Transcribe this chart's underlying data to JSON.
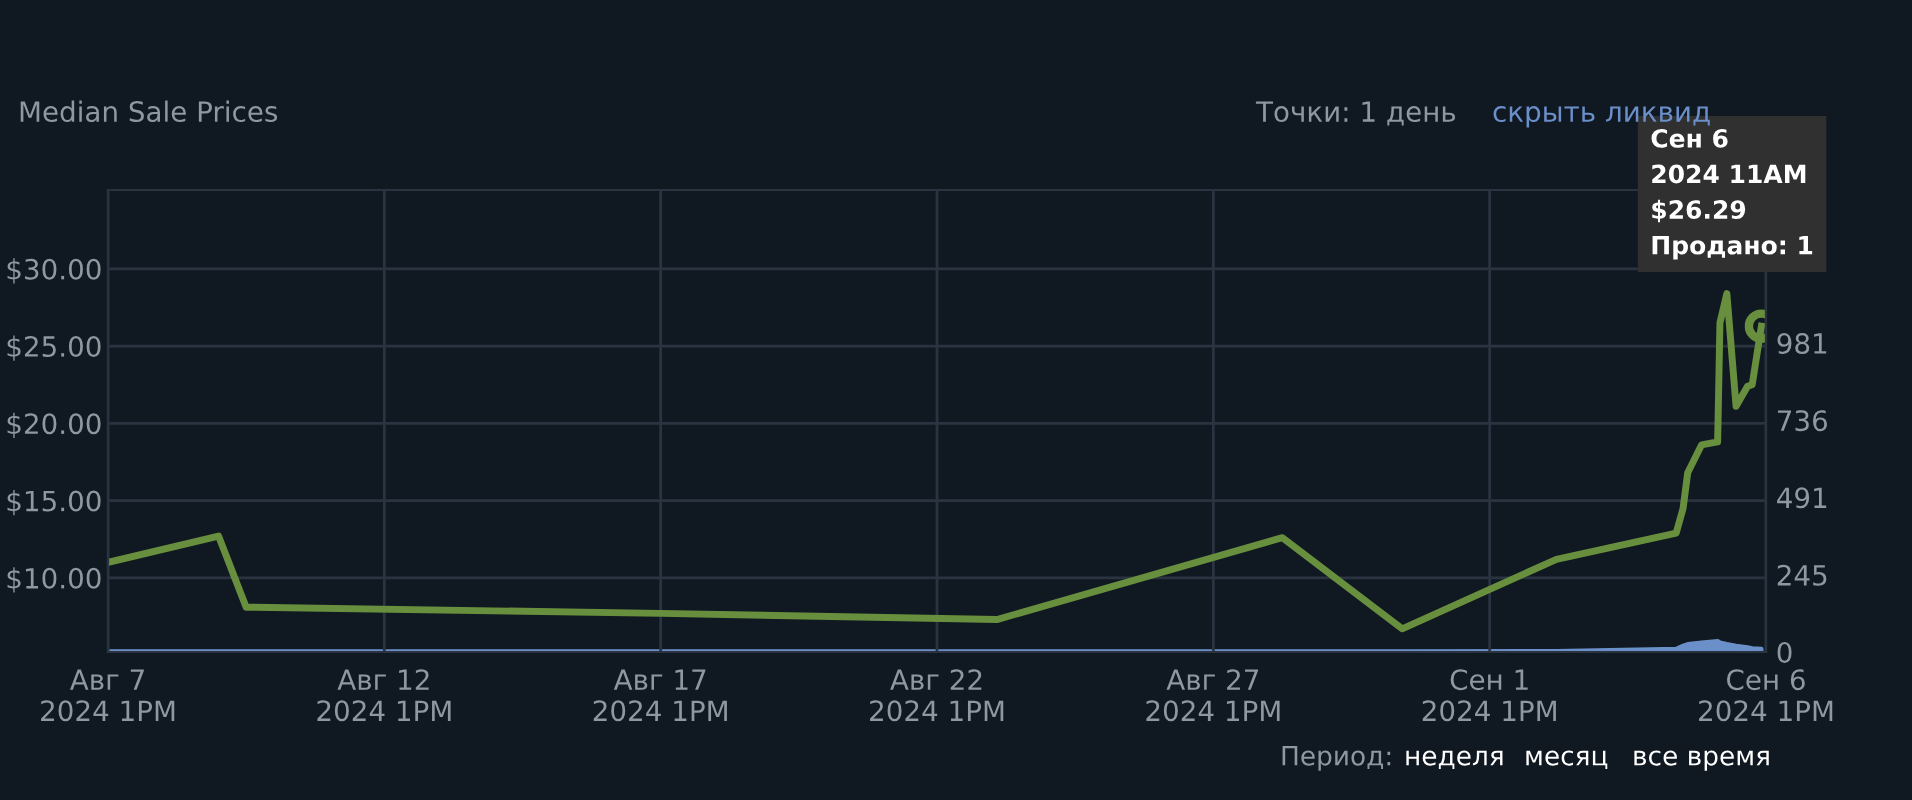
{
  "chart_data": {
    "type": "line",
    "title": "Median Sale Prices",
    "x": [
      "2024-08-07T13:00",
      "2024-08-09T13:00",
      "2024-08-10T01:00",
      "2024-08-17T13:00",
      "2024-08-23T15:00",
      "2024-08-28T19:00",
      "2024-08-30T23:00",
      "2024-09-02T18:00",
      "2024-09-04T22:00",
      "2024-09-05T01:00",
      "2024-09-05T03:00",
      "2024-09-05T09:00",
      "2024-09-05T16:00",
      "2024-09-05T17:00",
      "2024-09-05T20:00",
      "2024-09-06T00:00",
      "2024-09-06T05:00",
      "2024-09-06T07:00",
      "2024-09-06T11:00"
    ],
    "series": [
      {
        "color": "#688f3e",
        "values": [
          11.0,
          12.7,
          8.1,
          7.7,
          7.3,
          12.6,
          6.7,
          11.2,
          12.9,
          14.5,
          16.8,
          18.6,
          18.8,
          26.5,
          28.4,
          21.1,
          22.4,
          22.5,
          26.29
        ]
      },
      {
        "color": "#6b8fc9",
        "axis": "y2",
        "type": "area",
        "values": [
          2,
          2,
          2,
          2,
          2,
          2,
          2,
          3,
          10,
          20,
          25,
          30,
          35,
          30,
          25,
          20,
          15,
          12,
          10
        ]
      }
    ],
    "ylim": [
      5.2,
      35.1
    ],
    "yticks": [
      {
        "value": 10,
        "label": "$10.00"
      },
      {
        "value": 15,
        "label": "$15.00"
      },
      {
        "value": 20,
        "label": "$20.00"
      },
      {
        "value": 25,
        "label": "$25.00"
      },
      {
        "value": 30,
        "label": "$30.00"
      }
    ],
    "y2lim": [
      0,
      1467
    ],
    "y2ticks": [
      0,
      245,
      491,
      736,
      981
    ],
    "xlim": [
      "2024-08-07T13:00",
      "2024-09-06T13:00"
    ],
    "xticks": [
      {
        "value": "2024-08-07T13:00",
        "label": "Авг 7\n2024 1PM"
      },
      {
        "value": "2024-08-12T13:00",
        "label": "Авг 12\n2024 1PM"
      },
      {
        "value": "2024-08-17T13:00",
        "label": "Авг 17\n2024 1PM"
      },
      {
        "value": "2024-08-22T13:00",
        "label": "Авг 22\n2024 1PM"
      },
      {
        "value": "2024-08-27T13:00",
        "label": "Авг 27\n2024 1PM"
      },
      {
        "value": "2024-09-01T13:00",
        "label": "Сен 1\n2024 1PM"
      },
      {
        "value": "2024-09-06T13:00",
        "label": "Сен 6\n2024 1PM"
      }
    ],
    "grid": true,
    "annotations": [
      {
        "text": "Сен 6\n2024 11AM\n$26.29\nПродано: 1",
        "x": "2024-09-06T11:00",
        "y": 26.29
      },
      "Точки: 1 день",
      "скрыть ликвид",
      "Период:",
      "неделя",
      "месяц",
      "все время"
    ]
  }
}
